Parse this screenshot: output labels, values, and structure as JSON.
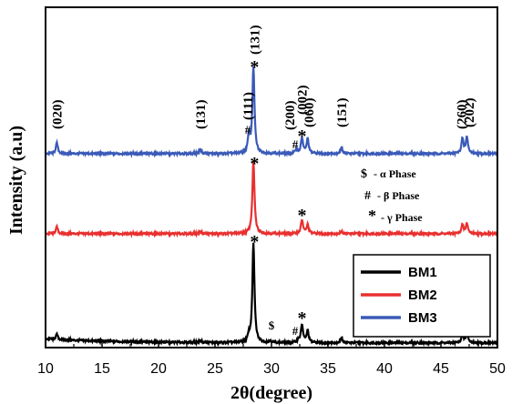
{
  "chart_data": {
    "type": "line",
    "xlabel": "2θ(degree)",
    "ylabel": "Intensity (a.u)",
    "xlim": [
      10,
      50
    ],
    "xticks": [
      10,
      15,
      20,
      25,
      30,
      35,
      40,
      45,
      50
    ],
    "grid": false,
    "legend_position": "lower-right",
    "colors": {
      "BM1": "#000000",
      "BM2": "#e8302f",
      "BM3": "#3a5ab8"
    },
    "series": [
      {
        "name": "BM1",
        "baseline": 0.04,
        "peaks": [
          [
            11.0,
            0.05
          ],
          [
            23.7,
            0.02
          ],
          [
            28.0,
            0.06
          ],
          [
            28.4,
            1.0
          ],
          [
            29.9,
            0.02
          ],
          [
            32.4,
            0.03
          ],
          [
            32.7,
            0.18
          ],
          [
            33.2,
            0.12
          ],
          [
            36.2,
            0.05
          ],
          [
            46.9,
            0.08
          ],
          [
            47.3,
            0.1
          ]
        ]
      },
      {
        "name": "BM2",
        "baseline": 0.0,
        "peaks": [
          [
            11.0,
            0.09
          ],
          [
            23.7,
            0.03
          ],
          [
            28.4,
            1.0
          ],
          [
            32.7,
            0.19
          ],
          [
            33.2,
            0.12
          ],
          [
            36.2,
            0.03
          ],
          [
            46.9,
            0.12
          ],
          [
            47.3,
            0.14
          ]
        ]
      },
      {
        "name": "BM3",
        "baseline": 0.0,
        "peaks": [
          [
            11.0,
            0.12
          ],
          [
            23.7,
            0.05
          ],
          [
            28.0,
            0.2
          ],
          [
            28.4,
            1.0
          ],
          [
            32.2,
            0.05
          ],
          [
            32.7,
            0.18
          ],
          [
            33.2,
            0.17
          ],
          [
            36.2,
            0.07
          ],
          [
            46.9,
            0.17
          ],
          [
            47.3,
            0.19
          ]
        ]
      }
    ],
    "peak_labels": [
      {
        "label": "(020)",
        "x": 11.0
      },
      {
        "label": "(131)",
        "x": 23.7
      },
      {
        "label": "(111)",
        "x": 27.9
      },
      {
        "label": "(131)",
        "x": 28.5
      },
      {
        "label": "(200)",
        "x": 31.6
      },
      {
        "label": "(002)",
        "x": 32.7
      },
      {
        "label": "(060)",
        "x": 33.3
      },
      {
        "label": "(151)",
        "x": 36.2
      },
      {
        "label": "(260)",
        "x": 46.8
      },
      {
        "label": "(202)",
        "x": 47.5
      }
    ],
    "phase_markers": [
      {
        "symbol": "*",
        "x": 28.5,
        "series": "BM3"
      },
      {
        "symbol": "#",
        "x": 27.9,
        "series": "BM3"
      },
      {
        "symbol": "*",
        "x": 32.7,
        "series": "BM3"
      },
      {
        "symbol": "#",
        "x": 32.1,
        "series": "BM3"
      },
      {
        "symbol": "*",
        "x": 28.5,
        "series": "BM2"
      },
      {
        "symbol": "*",
        "x": 32.7,
        "series": "BM2"
      },
      {
        "symbol": "*",
        "x": 28.5,
        "series": "BM1"
      },
      {
        "symbol": "$",
        "x": 30.0,
        "series": "BM1"
      },
      {
        "symbol": "#",
        "x": 32.1,
        "series": "BM1"
      },
      {
        "symbol": "*",
        "x": 32.7,
        "series": "BM1"
      }
    ],
    "phase_legend": [
      {
        "symbol": "$",
        "text": "- α  Phase"
      },
      {
        "symbol": "#",
        "text": "- β  Phase"
      },
      {
        "symbol": "*",
        "text": "- γ Phase"
      }
    ]
  }
}
